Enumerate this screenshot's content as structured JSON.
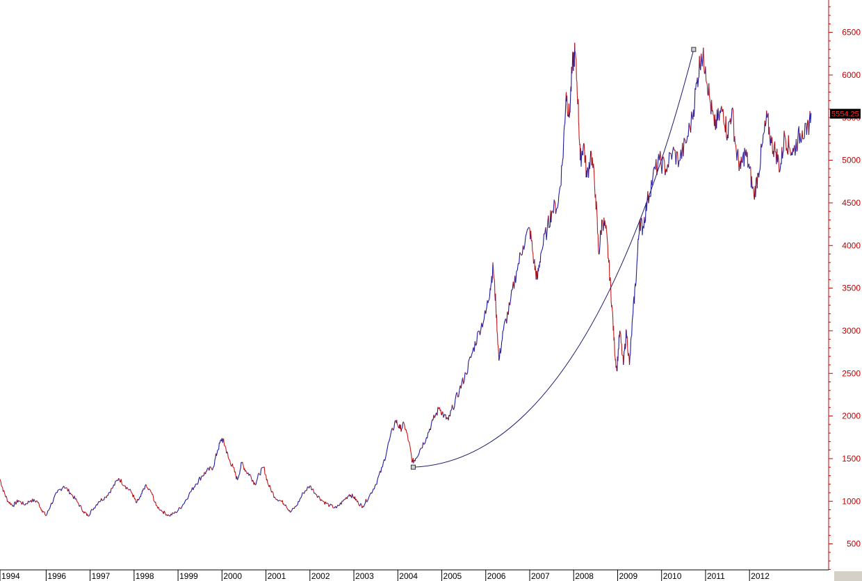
{
  "chart_data": {
    "type": "line",
    "title": "",
    "xlabel": "",
    "ylabel": "",
    "y_axis_side": "right",
    "ylim": [
      195,
      6880
    ],
    "xlim": [
      1994.0,
      2012.85
    ],
    "grid": false,
    "legend": "none",
    "y_ticks": [
      "500",
      "1000",
      "1500",
      "2000",
      "2500",
      "3000",
      "3500",
      "4000",
      "4500",
      "5000",
      "5500",
      "6000",
      "6500"
    ],
    "x_ticks": [
      {
        "label": "1994",
        "x": 1994.0
      },
      {
        "label": "1996",
        "x": 1995.05
      },
      {
        "label": "1997",
        "x": 1996.05
      },
      {
        "label": "1998",
        "x": 1997.05
      },
      {
        "label": "1999",
        "x": 1998.05
      },
      {
        "label": "2000",
        "x": 1999.05
      },
      {
        "label": "2001",
        "x": 2000.05
      },
      {
        "label": "2002",
        "x": 2001.05
      },
      {
        "label": "2003",
        "x": 2002.05
      },
      {
        "label": "2004",
        "x": 2003.05
      },
      {
        "label": "2005",
        "x": 2004.05
      },
      {
        "label": "2006",
        "x": 2005.05
      },
      {
        "label": "2007",
        "x": 2006.05
      },
      {
        "label": "2008",
        "x": 2007.05
      },
      {
        "label": "2009",
        "x": 2008.05
      },
      {
        "label": "2010",
        "x": 2009.05
      },
      {
        "label": "2011",
        "x": 2010.05
      },
      {
        "label": "2012",
        "x": 2011.05
      }
    ],
    "last_value_label": "5554.25",
    "colors": {
      "line": "#1a1aa0",
      "down_line": "#c01818",
      "axis": "#c00000",
      "curve": "#1a1a70"
    },
    "series": [
      {
        "values": [
          [
            1994.0,
            1260
          ],
          [
            1994.08,
            1120
          ],
          [
            1994.18,
            1000
          ],
          [
            1994.3,
            950
          ],
          [
            1994.42,
            1010
          ],
          [
            1994.55,
            960
          ],
          [
            1994.7,
            1010
          ],
          [
            1994.85,
            1000
          ],
          [
            1994.95,
            900
          ],
          [
            1995.05,
            830
          ],
          [
            1995.15,
            950
          ],
          [
            1995.3,
            1100
          ],
          [
            1995.45,
            1180
          ],
          [
            1995.6,
            1100
          ],
          [
            1995.75,
            1000
          ],
          [
            1995.9,
            880
          ],
          [
            1996.0,
            830
          ],
          [
            1996.1,
            900
          ],
          [
            1996.25,
            1000
          ],
          [
            1996.4,
            1050
          ],
          [
            1996.55,
            1150
          ],
          [
            1996.7,
            1270
          ],
          [
            1996.85,
            1180
          ],
          [
            1997.0,
            1100
          ],
          [
            1997.1,
            980
          ],
          [
            1997.2,
            1050
          ],
          [
            1997.3,
            1180
          ],
          [
            1997.45,
            1100
          ],
          [
            1997.55,
            950
          ],
          [
            1997.7,
            880
          ],
          [
            1997.85,
            830
          ],
          [
            1998.0,
            870
          ],
          [
            1998.15,
            950
          ],
          [
            1998.3,
            1080
          ],
          [
            1998.45,
            1200
          ],
          [
            1998.6,
            1300
          ],
          [
            1998.7,
            1350
          ],
          [
            1998.85,
            1400
          ],
          [
            1998.95,
            1600
          ],
          [
            1999.05,
            1740
          ],
          [
            1999.12,
            1650
          ],
          [
            1999.2,
            1500
          ],
          [
            1999.3,
            1400
          ],
          [
            1999.4,
            1250
          ],
          [
            1999.5,
            1450
          ],
          [
            1999.6,
            1350
          ],
          [
            1999.7,
            1300
          ],
          [
            1999.8,
            1200
          ],
          [
            1999.9,
            1320
          ],
          [
            2000.0,
            1400
          ],
          [
            2000.1,
            1200
          ],
          [
            2000.25,
            1050
          ],
          [
            2000.4,
            1000
          ],
          [
            2000.5,
            960
          ],
          [
            2000.6,
            870
          ],
          [
            2000.75,
            950
          ],
          [
            2000.9,
            1100
          ],
          [
            2001.05,
            1180
          ],
          [
            2001.2,
            1080
          ],
          [
            2001.35,
            1000
          ],
          [
            2001.5,
            950
          ],
          [
            2001.65,
            920
          ],
          [
            2001.8,
            1000
          ],
          [
            2001.95,
            1080
          ],
          [
            2002.05,
            1050
          ],
          [
            2002.15,
            980
          ],
          [
            2002.25,
            940
          ],
          [
            2002.4,
            1060
          ],
          [
            2002.55,
            1200
          ],
          [
            2002.7,
            1400
          ],
          [
            2002.85,
            1700
          ],
          [
            2003.0,
            1950
          ],
          [
            2003.1,
            1850
          ],
          [
            2003.2,
            1900
          ],
          [
            2003.3,
            1700
          ],
          [
            2003.38,
            1460
          ],
          [
            2003.45,
            1500
          ],
          [
            2003.55,
            1600
          ],
          [
            2003.7,
            1750
          ],
          [
            2003.85,
            1950
          ],
          [
            2004.0,
            2100
          ],
          [
            2004.1,
            2000
          ],
          [
            2004.2,
            1950
          ],
          [
            2004.3,
            2100
          ],
          [
            2004.45,
            2300
          ],
          [
            2004.6,
            2500
          ],
          [
            2004.75,
            2750
          ],
          [
            2004.9,
            3000
          ],
          [
            2005.05,
            3200
          ],
          [
            2005.15,
            3500
          ],
          [
            2005.22,
            3750
          ],
          [
            2005.28,
            3300
          ],
          [
            2005.35,
            2650
          ],
          [
            2005.45,
            3000
          ],
          [
            2005.6,
            3300
          ],
          [
            2005.75,
            3700
          ],
          [
            2005.9,
            4000
          ],
          [
            2006.05,
            4200
          ],
          [
            2006.15,
            3800
          ],
          [
            2006.22,
            3600
          ],
          [
            2006.3,
            3900
          ],
          [
            2006.45,
            4200
          ],
          [
            2006.55,
            4400
          ],
          [
            2006.7,
            4500
          ],
          [
            2006.8,
            5000
          ],
          [
            2006.88,
            5800
          ],
          [
            2006.95,
            5500
          ],
          [
            2007.02,
            6100
          ],
          [
            2007.08,
            6280
          ],
          [
            2007.15,
            5700
          ],
          [
            2007.2,
            5000
          ],
          [
            2007.28,
            5200
          ],
          [
            2007.35,
            4800
          ],
          [
            2007.45,
            5100
          ],
          [
            2007.55,
            4600
          ],
          [
            2007.62,
            3900
          ],
          [
            2007.7,
            4300
          ],
          [
            2007.78,
            4200
          ],
          [
            2007.85,
            3800
          ],
          [
            2007.92,
            3300
          ],
          [
            2007.98,
            2800
          ],
          [
            2008.03,
            2530
          ],
          [
            2008.1,
            3000
          ],
          [
            2008.18,
            2600
          ],
          [
            2008.25,
            3000
          ],
          [
            2008.32,
            2600
          ],
          [
            2008.4,
            3200
          ],
          [
            2008.48,
            3700
          ],
          [
            2008.55,
            4300
          ],
          [
            2008.62,
            4200
          ],
          [
            2008.72,
            4500
          ],
          [
            2008.85,
            4800
          ],
          [
            2009.0,
            5000
          ],
          [
            2009.15,
            4900
          ],
          [
            2009.3,
            5100
          ],
          [
            2009.45,
            5000
          ],
          [
            2009.6,
            5200
          ],
          [
            2009.75,
            5500
          ],
          [
            2009.85,
            5900
          ],
          [
            2009.95,
            6250
          ],
          [
            2010.05,
            6100
          ],
          [
            2010.15,
            5700
          ],
          [
            2010.25,
            5400
          ],
          [
            2010.35,
            5500
          ],
          [
            2010.45,
            5600
          ],
          [
            2010.55,
            5300
          ],
          [
            2010.65,
            5600
          ],
          [
            2010.75,
            5100
          ],
          [
            2010.85,
            4900
          ],
          [
            2010.95,
            5100
          ],
          [
            2011.05,
            4900
          ],
          [
            2011.15,
            4580
          ],
          [
            2011.25,
            4850
          ],
          [
            2011.35,
            5200
          ],
          [
            2011.45,
            5500
          ],
          [
            2011.55,
            5200
          ],
          [
            2011.65,
            5100
          ],
          [
            2011.75,
            4900
          ],
          [
            2011.85,
            5300
          ],
          [
            2011.95,
            5150
          ],
          [
            2012.05,
            5100
          ],
          [
            2012.15,
            5250
          ],
          [
            2012.25,
            5350
          ],
          [
            2012.35,
            5300
          ],
          [
            2012.45,
            5554.25
          ]
        ]
      }
    ],
    "annotation_curve": {
      "type": "curve",
      "start": {
        "x": 2003.4,
        "y": 1400
      },
      "end": {
        "x": 2009.78,
        "y": 6300
      }
    }
  }
}
